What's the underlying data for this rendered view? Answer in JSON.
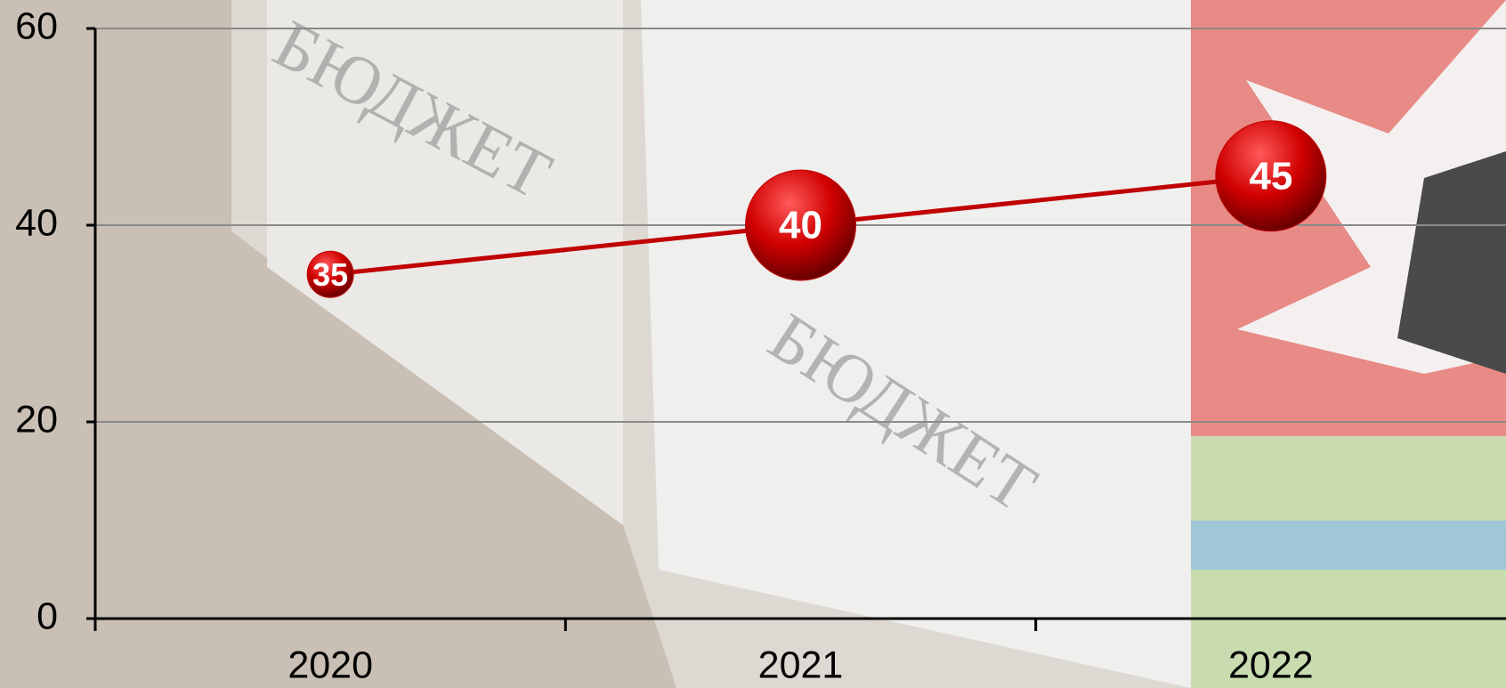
{
  "chart_data": {
    "type": "line",
    "categories": [
      "2020",
      "2021",
      "2022"
    ],
    "series": [
      {
        "color": "#c00000",
        "values": [
          35,
          40,
          45
        ]
      }
    ],
    "ylim": [
      0,
      60
    ],
    "yticks": [
      0,
      20,
      40,
      60
    ],
    "grid": true
  },
  "background_text": [
    "БЮДЖЕТ",
    "БЮДЖЕТ"
  ]
}
